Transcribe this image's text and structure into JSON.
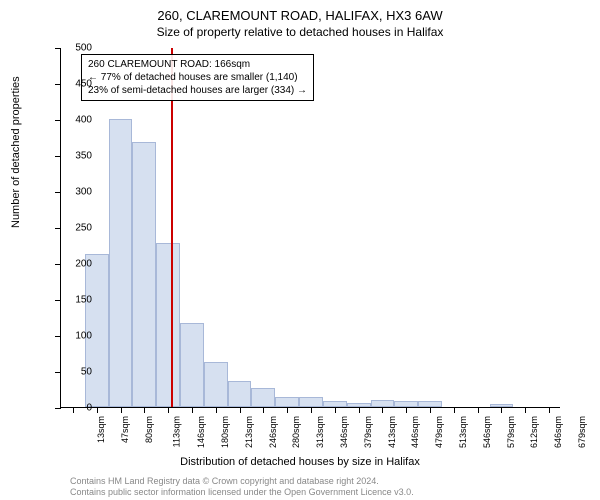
{
  "title": "260, CLAREMOUNT ROAD, HALIFAX, HX3 6AW",
  "subtitle": "Size of property relative to detached houses in Halifax",
  "y_axis_label": "Number of detached properties",
  "x_axis_label": "Distribution of detached houses by size in Halifax",
  "footer_line1": "Contains HM Land Registry data © Crown copyright and database right 2024.",
  "footer_line2": "Contains public sector information licensed under the Open Government Licence v3.0.",
  "chart": {
    "type": "histogram",
    "background_color": "#ffffff",
    "bar_fill": "#d6e0f0",
    "bar_stroke": "#a8b8d8",
    "marker_color": "#cc0000",
    "ylim": [
      0,
      500
    ],
    "y_ticks": [
      0,
      50,
      100,
      150,
      200,
      250,
      300,
      350,
      400,
      450,
      500
    ],
    "x_labels": [
      "13sqm",
      "47sqm",
      "80sqm",
      "113sqm",
      "146sqm",
      "180sqm",
      "213sqm",
      "246sqm",
      "280sqm",
      "313sqm",
      "346sqm",
      "379sqm",
      "413sqm",
      "446sqm",
      "479sqm",
      "513sqm",
      "546sqm",
      "579sqm",
      "612sqm",
      "646sqm",
      "679sqm"
    ],
    "values": [
      0,
      212,
      400,
      368,
      228,
      116,
      62,
      36,
      26,
      14,
      14,
      8,
      6,
      10,
      8,
      8,
      0,
      0,
      4,
      0,
      0
    ],
    "marker_index": 4.6,
    "info_box": {
      "line1": "260 CLAREMOUNT ROAD: 166sqm",
      "line2": "← 77% of detached houses are smaller (1,140)",
      "line3": "23% of semi-detached houses are larger (334) →"
    }
  }
}
